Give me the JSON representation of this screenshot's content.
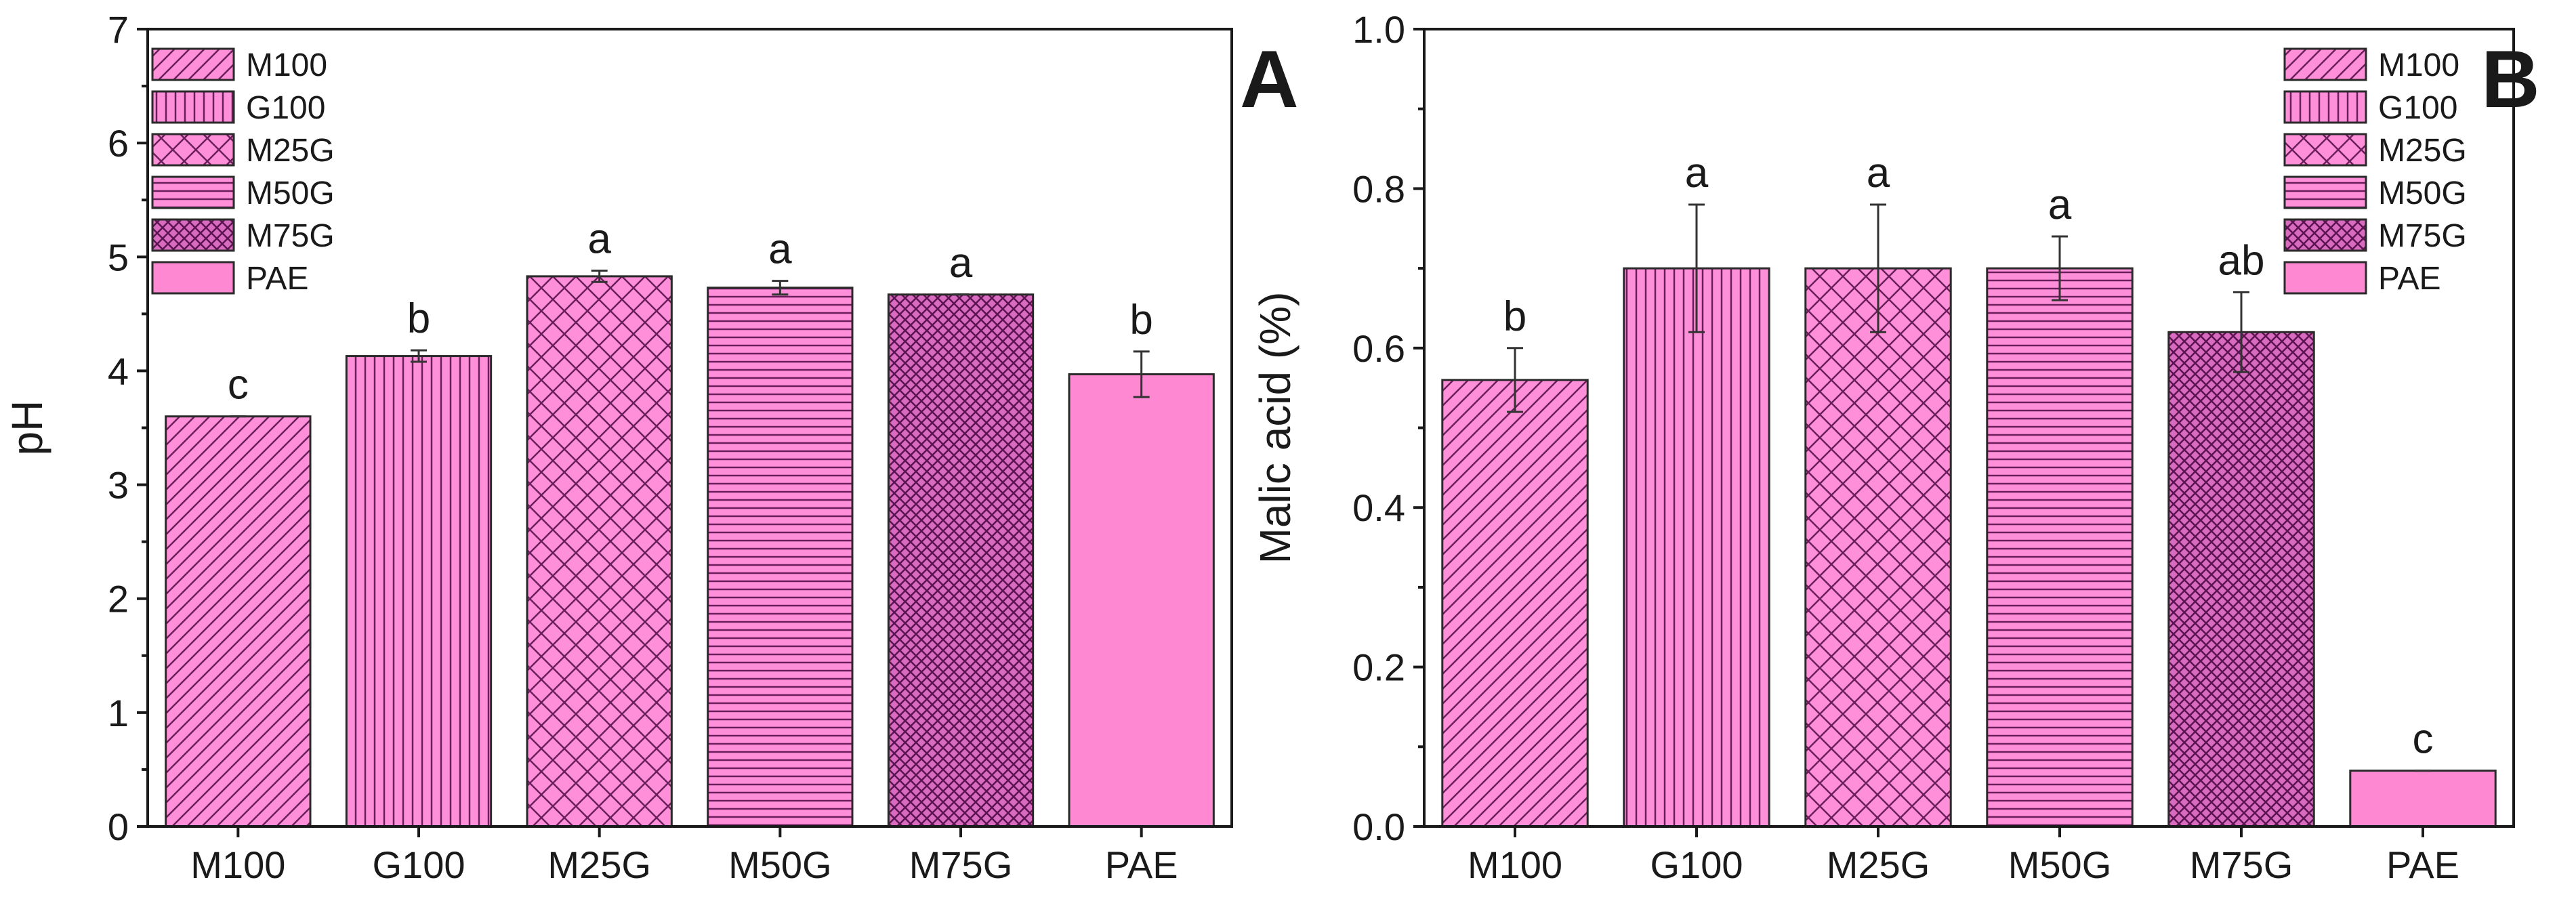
{
  "colors": {
    "bar_fill": "#ff8fd8",
    "hatch": "#6a1f5c",
    "solid_fill": "#ff88d2",
    "axis": "#1a1a1a"
  },
  "chart_data": [
    {
      "panel": "A",
      "type": "bar",
      "title": "",
      "xlabel": "",
      "ylabel": "pH",
      "ylim": [
        0,
        7
      ],
      "yticks": [
        "0",
        "1",
        "2",
        "3",
        "4",
        "5",
        "6",
        "7"
      ],
      "categories": [
        "M100",
        "G100",
        "M25G",
        "M50G",
        "M75G",
        "PAE"
      ],
      "values": [
        3.6,
        4.13,
        4.83,
        4.73,
        4.67,
        3.97
      ],
      "errors": [
        0.0,
        0.05,
        0.05,
        0.06,
        0.0,
        0.2
      ],
      "letters": [
        "c",
        "b",
        "a",
        "a",
        "a",
        "b"
      ],
      "patterns": [
        "diag-back",
        "vertical",
        "crosshatch-diag",
        "horizontal",
        "dense-cross",
        "solid"
      ],
      "legend": [
        "M100",
        "G100",
        "M25G",
        "M50G",
        "M75G",
        "PAE"
      ],
      "legend_position": "top-left",
      "grid": false
    },
    {
      "panel": "B",
      "type": "bar",
      "title": "",
      "xlabel": "",
      "ylabel": "Malic acid (%)",
      "ylim": [
        0,
        1.0
      ],
      "yticks": [
        "0.0",
        "0.2",
        "0.4",
        "0.6",
        "0.8",
        "1.0"
      ],
      "categories": [
        "M100",
        "G100",
        "M25G",
        "M50G",
        "M75G",
        "PAE"
      ],
      "values": [
        0.56,
        0.7,
        0.7,
        0.7,
        0.62,
        0.07
      ],
      "errors": [
        0.04,
        0.08,
        0.08,
        0.04,
        0.05,
        0.0
      ],
      "letters": [
        "b",
        "a",
        "a",
        "a",
        "ab",
        "c"
      ],
      "patterns": [
        "diag-back",
        "vertical",
        "crosshatch-diag",
        "horizontal",
        "dense-cross",
        "solid"
      ],
      "legend": [
        "M100",
        "G100",
        "M25G",
        "M50G",
        "M75G",
        "PAE"
      ],
      "legend_position": "top-right",
      "grid": false
    }
  ]
}
